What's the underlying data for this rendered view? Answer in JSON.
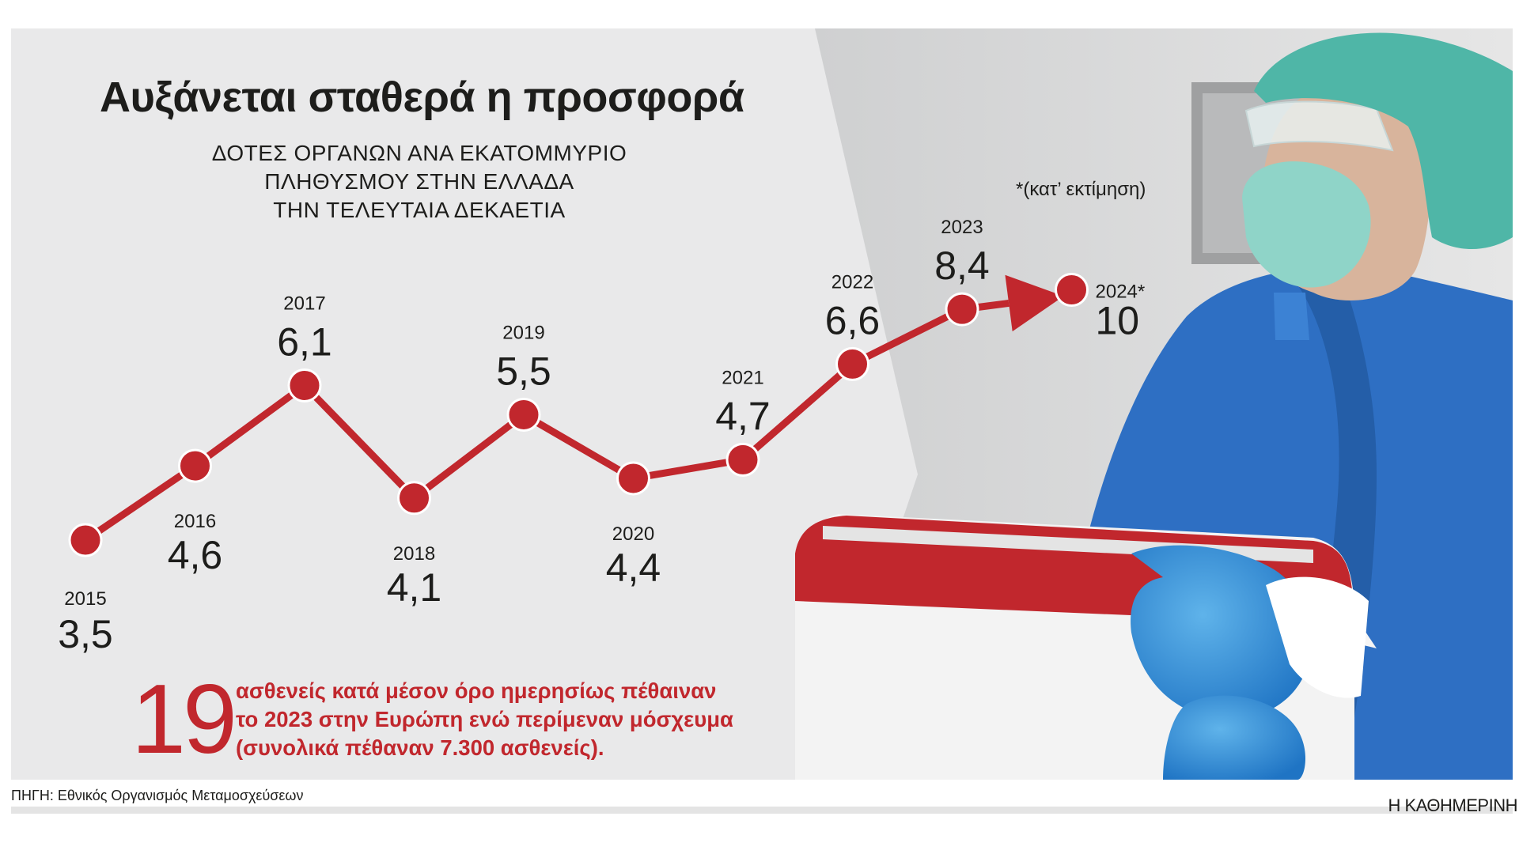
{
  "title": "Αυξάνεται σταθερά η προσφορά",
  "subtitle": "ΔΟΤΕΣ ΟΡΓΑΝΩΝ ΑΝΑ ΕΚΑΤΟΜΜΥΡΙΟ\nΠΛΗΘΥΣΜΟΥ ΣΤΗΝ ΕΛΛΑΔΑ\nΤΗΝ ΤΕΛΕΥΤΑΙΑ ΔΕΚΑΕΤΙΑ",
  "highlight": {
    "number": "19",
    "text": "ασθενείς κατά μέσον όρο ημερησίως πέθαιναν\nτο 2023 στην Ευρώπη ενώ περίμεναν μόσχευμα\n(συνολικά πέθαναν 7.300 ασθενείς)."
  },
  "footnote": "*(κατ’ εκτίμηση)",
  "source": "ΠΗΓΗ: Εθνικός Οργανισμός Μεταμοσχεύσεων",
  "brand": "Η ΚΑΘΗΜΕΡΙΝΗ",
  "colors": {
    "accent": "#c1272d",
    "panel": "#e9e9ea",
    "text": "#1d1d1b",
    "scrubs": "#2e6fc3",
    "cap": "#4fb6a7"
  },
  "chart_data": {
    "type": "line",
    "title": "Αυξάνεται σταθερά η προσφορά",
    "subtitle": "ΔΟΤΕΣ ΟΡΓΑΝΩΝ ΑΝΑ ΕΚΑΤΟΜΜΥΡΙΟ ΠΛΗΘΥΣΜΟΥ ΣΤΗΝ ΕΛΛΑΔΑ ΤΗΝ ΤΕΛΕΥΤΑΙΑ ΔΕΚΑΕΤΙΑ",
    "x": [
      "2015",
      "2016",
      "2017",
      "2018",
      "2019",
      "2020",
      "2021",
      "2022",
      "2023",
      "2024*"
    ],
    "values": [
      3.5,
      4.6,
      6.1,
      4.1,
      5.5,
      4.4,
      4.7,
      6.6,
      8.4,
      10
    ],
    "value_labels": [
      "3,5",
      "4,6",
      "6,1",
      "4,1",
      "5,5",
      "4,4",
      "4,7",
      "6,6",
      "8,4",
      "10"
    ],
    "last_point_arrow": true,
    "xlabel": "",
    "ylabel": "",
    "grid": false,
    "legend": "none",
    "note": "*(κατ’ εκτίμηση)"
  }
}
